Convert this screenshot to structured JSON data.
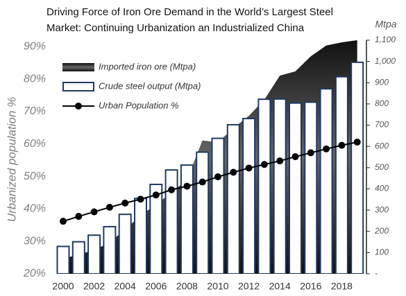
{
  "chart_data": {
    "type": "combo",
    "title": [
      "Driving Force of Iron Ore Demand in the World’s Largest Steel",
      "Market: Continuing Urbanization an Industrialized China"
    ],
    "y_label": "Urbanized population %",
    "y2_label": "Mtpa",
    "categories": [
      "2000",
      null,
      "2002",
      null,
      "2004",
      null,
      "2006",
      null,
      "2008",
      null,
      "2010",
      null,
      "2012",
      null,
      "2014",
      null,
      "2016",
      null,
      "2018",
      null
    ],
    "ylim": [
      20,
      92
    ],
    "yticks": [
      {
        "value": 20,
        "label": "20%"
      },
      {
        "value": 30,
        "label": "30%"
      },
      {
        "value": 40,
        "label": "40%"
      },
      {
        "value": 50,
        "label": "50%"
      },
      {
        "value": 60,
        "label": "60%"
      },
      {
        "value": 70,
        "label": "70%"
      },
      {
        "value": 80,
        "label": "80%"
      },
      {
        "value": 90,
        "label": "90%"
      }
    ],
    "y2lim": [
      0,
      1100
    ],
    "y2ticks": [
      {
        "value": 0,
        "label": "-"
      },
      100,
      200,
      300,
      400,
      500,
      600,
      700,
      800,
      900,
      {
        "value": 1000,
        "label": "1,000"
      },
      {
        "value": 1100,
        "label": "1,100"
      }
    ],
    "legend": "upper left",
    "series": [
      {
        "name": "Imported iron ore (Mtpa)",
        "type": "area",
        "axis": "y2",
        "color": "#1a1a1a",
        "values": [
          70,
          92,
          111,
          148,
          208,
          275,
          326,
          383,
          444,
          628,
          619,
          686,
          744,
          820,
          933,
          953,
          1024,
          1075,
          1090,
          1100
        ]
      },
      {
        "name": "Crude steel output (Mtpa)",
        "type": "bar",
        "axis": "y2",
        "color": "#1f3864",
        "values": [
          129,
          151,
          182,
          222,
          280,
          355,
          421,
          489,
          512,
          573,
          638,
          702,
          731,
          822,
          823,
          804,
          808,
          871,
          928,
          996
        ]
      },
      {
        "name": "Urban Population %",
        "type": "line",
        "color": "#000000",
        "values": [
          36.2,
          37.7,
          39.1,
          40.5,
          41.8,
          43.0,
          44.3,
          45.9,
          47.0,
          48.3,
          49.9,
          51.3,
          52.6,
          53.7,
          54.8,
          56.1,
          57.3,
          58.5,
          59.6,
          60.6
        ]
      }
    ]
  }
}
